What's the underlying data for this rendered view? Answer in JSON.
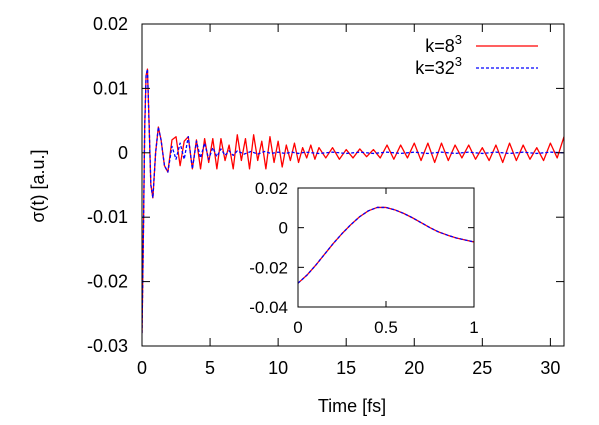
{
  "chart_data": [
    {
      "type": "line",
      "xlabel": "Time [fs]",
      "ylabel": "σ(t) [a.u.]",
      "xlim": [
        0,
        31
      ],
      "ylim": [
        -0.03,
        0.02
      ],
      "xticks": [
        0,
        5,
        10,
        15,
        20,
        25,
        30
      ],
      "yticks": [
        -0.03,
        -0.02,
        -0.01,
        0,
        0.01,
        0.02
      ],
      "xtick_labels": [
        "0",
        "5",
        "10",
        "15",
        "20",
        "25",
        "30"
      ],
      "ytick_labels": [
        "-0.03",
        "-0.02",
        "-0.01",
        "0",
        "0.01",
        "0.02"
      ],
      "grid": false,
      "legend_position": "top-right",
      "series": [
        {
          "name": "k=8^3",
          "legend_base": "k=8",
          "legend_sup": "3",
          "color": "#ff0000",
          "style": "solid",
          "x": [
            0,
            0.1,
            0.2,
            0.3,
            0.4,
            0.5,
            0.65,
            0.8,
            1.0,
            1.2,
            1.4,
            1.65,
            1.9,
            2.2,
            2.5,
            2.8,
            3.1,
            3.4,
            3.7,
            4.0,
            4.3,
            4.6,
            4.9,
            5.2,
            5.5,
            5.8,
            6.1,
            6.4,
            6.7,
            7.0,
            7.3,
            7.6,
            7.9,
            8.2,
            8.5,
            8.8,
            9.1,
            9.4,
            9.7,
            10.0,
            10.3,
            10.6,
            10.9,
            11.2,
            11.5,
            11.8,
            12.1,
            12.4,
            12.7,
            13.0,
            13.5,
            14.0,
            14.5,
            15.0,
            15.5,
            16.0,
            16.5,
            17.0,
            17.5,
            18.0,
            18.5,
            19.0,
            19.5,
            20.0,
            20.5,
            21.0,
            21.5,
            22.0,
            22.5,
            23.0,
            23.5,
            24.0,
            24.5,
            25.0,
            25.5,
            26.0,
            26.5,
            27.0,
            27.5,
            28.0,
            28.5,
            29.0,
            29.5,
            30.0,
            30.5,
            31.0
          ],
          "y": [
            -0.028,
            -0.013,
            0.004,
            0.012,
            0.013,
            0.006,
            -0.005,
            -0.007,
            0.0,
            0.004,
            0.002,
            -0.002,
            -0.003,
            0.002,
            0.0025,
            -0.002,
            0.0018,
            0.0025,
            -0.0025,
            0.002,
            -0.0025,
            0.0022,
            -0.0015,
            0.0022,
            -0.0025,
            0.0022,
            -0.0012,
            0.0012,
            -0.0025,
            0.0028,
            -0.0012,
            0.0022,
            -0.0025,
            0.0028,
            -0.0012,
            0.0018,
            -0.0025,
            0.0025,
            -0.0015,
            0.0018,
            -0.0022,
            0.0012,
            -0.0012,
            0.0015,
            -0.0015,
            0.0008,
            -0.0008,
            0.0012,
            -0.001,
            0.0008,
            -0.0008,
            0.0008,
            -0.001,
            0.0005,
            -0.0008,
            0.0006,
            -0.0006,
            0.0005,
            -0.0008,
            0.0012,
            -0.001,
            0.0012,
            -0.0008,
            0.0015,
            -0.0012,
            0.0015,
            -0.0015,
            0.0015,
            -0.0012,
            0.0012,
            -0.0008,
            0.0012,
            -0.001,
            0.0008,
            -0.0012,
            0.0012,
            -0.0015,
            0.0015,
            -0.0012,
            0.0012,
            -0.001,
            0.0008,
            -0.0012,
            0.0015,
            -0.0008,
            0.0025
          ]
        },
        {
          "name": "k=32^3",
          "legend_base": "k=32",
          "legend_sup": "3",
          "color": "#0000ff",
          "style": "dashed",
          "x": [
            0,
            0.1,
            0.2,
            0.3,
            0.4,
            0.5,
            0.65,
            0.8,
            1.0,
            1.2,
            1.4,
            1.65,
            1.9,
            2.2,
            2.5,
            2.8,
            3.1,
            3.4,
            3.7,
            4.0,
            4.3,
            4.6,
            4.9,
            5.2,
            5.5,
            5.8,
            6.1,
            6.4,
            6.7,
            7.0,
            7.5,
            8.0,
            8.5,
            9.0,
            9.5,
            10.0,
            10.5,
            11.0,
            11.5,
            12.0,
            13.0,
            14.0,
            15.0,
            16.0,
            17.0,
            18.0,
            19.0,
            20.0,
            21.0,
            22.0,
            23.0,
            24.0,
            25.0,
            26.0,
            27.0,
            28.0,
            29.0,
            30.0,
            31.0
          ],
          "y": [
            -0.028,
            -0.013,
            0.004,
            0.012,
            0.013,
            0.006,
            -0.005,
            -0.007,
            0.0,
            0.004,
            0.002,
            -0.002,
            -0.003,
            0.001,
            -0.001,
            0.0015,
            -0.001,
            0.0025,
            -0.0025,
            0.0018,
            -0.0008,
            0.0015,
            -0.001,
            0.0008,
            -0.0006,
            0.0006,
            -0.0004,
            0.0003,
            -0.0004,
            0.0003,
            -0.0002,
            0.0002,
            -0.0002,
            0.0002,
            -0.0001,
            0.0001,
            -0.0001,
            0.0001,
            -0.0001,
            0.0001,
            -0.0001,
            0.0001,
            -0.0001,
            0.0001,
            -0.0001,
            0.0001,
            -0.0001,
            0.0001,
            -0.0001,
            0.0001,
            -0.0001,
            0.0001,
            -0.0001,
            0.0001,
            -0.0001,
            0.0001,
            -0.0001,
            0.0001,
            0.0
          ]
        }
      ]
    },
    {
      "type": "line",
      "role": "inset",
      "xlim": [
        0,
        1
      ],
      "ylim": [
        -0.04,
        0.02
      ],
      "xticks": [
        0,
        0.5,
        1
      ],
      "yticks": [
        -0.04,
        -0.02,
        0,
        0.02
      ],
      "xtick_labels": [
        "0",
        "0.5",
        "1"
      ],
      "ytick_labels": [
        "-0.04",
        "-0.02",
        "0",
        "0.02"
      ],
      "series": [
        {
          "name": "k=8^3",
          "color": "#ff0000",
          "style": "solid",
          "x": [
            0,
            0.05,
            0.1,
            0.15,
            0.2,
            0.25,
            0.3,
            0.35,
            0.4,
            0.45,
            0.5,
            0.55,
            0.6,
            0.65,
            0.7,
            0.75,
            0.8,
            0.85,
            0.9,
            0.95,
            1.0
          ],
          "y": [
            -0.028,
            -0.024,
            -0.019,
            -0.0135,
            -0.008,
            -0.003,
            0.0015,
            0.0055,
            0.0085,
            0.0102,
            0.0102,
            0.009,
            0.0072,
            0.005,
            0.0025,
            0.0,
            -0.0022,
            -0.0038,
            -0.0052,
            -0.0062,
            -0.0072
          ]
        },
        {
          "name": "k=32^3",
          "color": "#0000ff",
          "style": "dashed",
          "x": [
            0,
            0.05,
            0.1,
            0.15,
            0.2,
            0.25,
            0.3,
            0.35,
            0.4,
            0.45,
            0.5,
            0.55,
            0.6,
            0.65,
            0.7,
            0.75,
            0.8,
            0.85,
            0.9,
            0.95,
            1.0
          ],
          "y": [
            -0.028,
            -0.024,
            -0.019,
            -0.0135,
            -0.008,
            -0.003,
            0.0015,
            0.0055,
            0.0085,
            0.0102,
            0.0102,
            0.009,
            0.0072,
            0.005,
            0.0025,
            0.0,
            -0.0022,
            -0.0038,
            -0.0052,
            -0.0062,
            -0.0072
          ]
        }
      ]
    }
  ]
}
